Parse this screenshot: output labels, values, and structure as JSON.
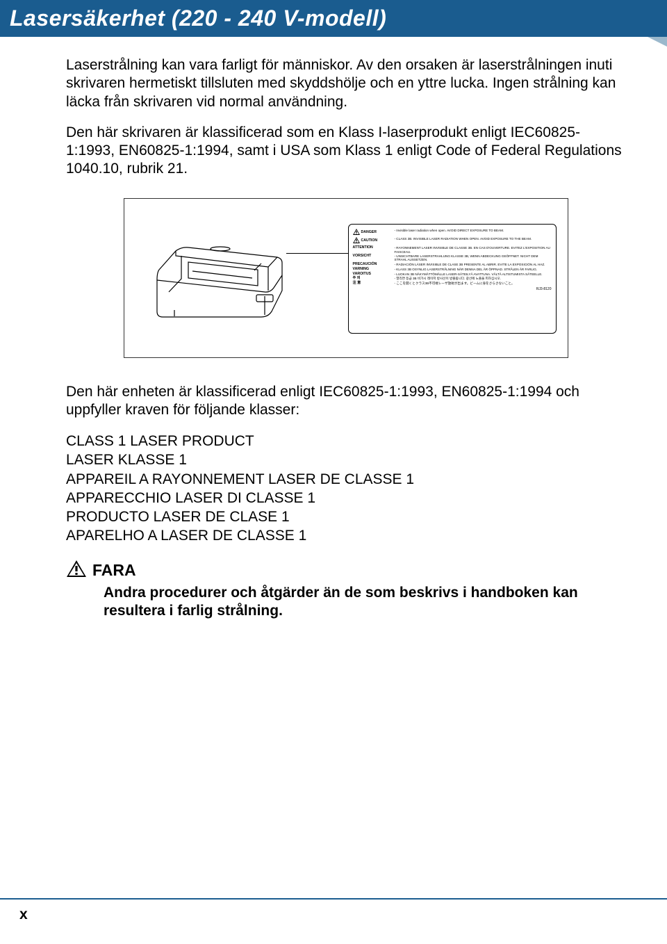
{
  "header": {
    "title": "Lasersäkerhet (220 - 240 V-modell)",
    "title_color": "#ffffff",
    "bg_color": "#1a5c8f",
    "notch_color": "#9bb8cc"
  },
  "paragraphs": {
    "p1": "Laserstrålning kan vara farligt för människor. Av den orsaken är laserstrålningen inuti skrivaren hermetiskt tillsluten med skyddshölje och en yttre lucka. Ingen strålning kan läcka från skrivaren vid normal användning.",
    "p2": "Den här skrivaren är klassificerad som en Klass I-laserprodukt enligt IEC60825-1:1993, EN60825-1:1994, samt i USA som Klass 1 enligt Code of Federal Regulations 1040.10, rubrik 21.",
    "p3": "Den här enheten är klassificerad enligt IEC60825-1:1993, EN60825-1:1994 och uppfyller kraven för följande klasser:"
  },
  "label": {
    "rows": [
      {
        "left": "DANGER",
        "right": "- Invisible laser radiation when open. AVOID DIRECT EXPOSURE TO BEAM."
      },
      {
        "left": "CAUTION",
        "right": "- CLASS 3B. INVISIBLE LASER RADIATION WHEN OPEN. AVOID EXPOSURE TO THE BEAM."
      },
      {
        "left": "ATTENTION",
        "right": "- RAYONNEMENT LASER INVISIBLE DE CLASSE 3B. EN CAS D'OUVERTURE. EVITEZ L'EXPOSITION AU FAISCEAU."
      },
      {
        "left": "VORSICHT",
        "right": "- UNSICHTBARE LASERSTRAHLUNG KLASSE 3B, WENN ABDECKUNG GEÖFFNET. NICHT DEM STRAHL AUSSETZEN."
      },
      {
        "left": "PRECAUCIÓN",
        "right": "- RADIACIÓN LÁSER INVISIBLE DE CLASE 3B PRESENTE AL ABRIR. EVITE LA EXPOSICIÓN AL HAZ."
      },
      {
        "left": "VARNING",
        "right": "- KLASS 3B OSYNLIG LASERSTRÅLNING NÄR DENNA DEL ÄR ÖPPNAD. STRÅLEN ÄR FARLIG."
      },
      {
        "left": "VAROITUS",
        "right": "- LUOKAN 3B NÄKYMÄTTÖMÄLLE LASER-SÄTEILYÄ AVATTUNA. VÄLTÄ ALTISTUMISTA SÄTEELLE."
      },
      {
        "left": "주 의",
        "right": "- 열리면 등급 3B 비가시 레이저 방사선이 방출됩니다. 광선에 노출을 피하십시오."
      },
      {
        "left": "注 意",
        "right": "- ここを開くとクラス3B不可視レーザ放射が出ます。ビームに身をさらさないこと。"
      }
    ],
    "code": "RJ3-8120"
  },
  "classes": [
    "CLASS 1 LASER PRODUCT",
    "LASER KLASSE 1",
    "APPAREIL A RAYONNEMENT LASER DE CLASSE 1",
    "APPARECCHIO LASER DI CLASSE 1",
    "PRODUCTO LASER DE CLASE 1",
    "APARELHO A LASER DE CLASSE 1"
  ],
  "fara": {
    "title": "FARA",
    "text": "Andra procedurer och åtgärder än de som beskrivs i handboken kan resultera i farlig strålning."
  },
  "footer": {
    "page": "x",
    "rule_color": "#1a5c8f"
  }
}
